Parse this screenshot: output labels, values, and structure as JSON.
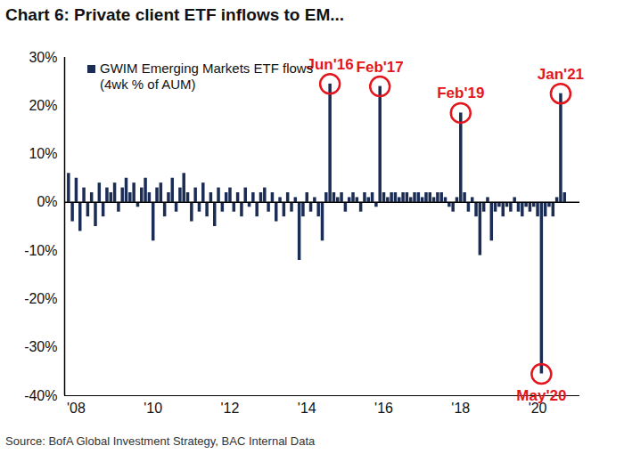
{
  "chart_data": {
    "type": "bar",
    "title": "Chart 6: Private client ETF inflows to EM...",
    "source": "Source: BofA Global Investment Strategy, BAC Internal Data",
    "x": [
      2007.8,
      2007.9,
      2008.0,
      2008.1,
      2008.2,
      2008.3,
      2008.4,
      2008.5,
      2008.6,
      2008.7,
      2008.8,
      2008.9,
      2009.0,
      2009.1,
      2009.2,
      2009.3,
      2009.4,
      2009.5,
      2009.6,
      2009.7,
      2009.8,
      2009.9,
      2010.0,
      2010.1,
      2010.2,
      2010.3,
      2010.4,
      2010.5,
      2010.6,
      2010.7,
      2010.8,
      2010.9,
      2011.0,
      2011.1,
      2011.2,
      2011.3,
      2011.4,
      2011.5,
      2011.6,
      2011.7,
      2011.8,
      2011.9,
      2012.0,
      2012.1,
      2012.2,
      2012.3,
      2012.4,
      2012.5,
      2012.6,
      2012.7,
      2012.8,
      2012.9,
      2013.0,
      2013.1,
      2013.2,
      2013.3,
      2013.4,
      2013.5,
      2013.6,
      2013.7,
      2013.8,
      2013.9,
      2014.0,
      2014.1,
      2014.2,
      2014.3,
      2014.4,
      2014.5,
      2014.6,
      2014.7,
      2014.8,
      2014.9,
      2015.0,
      2015.1,
      2015.2,
      2015.3,
      2015.4,
      2015.5,
      2015.6,
      2015.7,
      2015.8,
      2015.9,
      2016.0,
      2016.1,
      2016.2,
      2016.3,
      2016.4,
      2016.5,
      2016.6,
      2016.7,
      2016.8,
      2016.9,
      2017.0,
      2017.1,
      2017.2,
      2017.3,
      2017.4,
      2017.5,
      2017.6,
      2017.7,
      2017.8,
      2017.9,
      2018.0,
      2018.1,
      2018.2,
      2018.3,
      2018.4,
      2018.5,
      2018.6,
      2018.7,
      2018.8,
      2018.9,
      2019.0,
      2019.1,
      2019.2,
      2019.3,
      2019.4,
      2019.5,
      2019.6,
      2019.7,
      2019.8,
      2019.9,
      2020.0,
      2020.1,
      2020.2,
      2020.3,
      2020.4,
      2020.5,
      2020.6,
      2020.7
    ],
    "series": [
      {
        "name": "GWIM Emerging Markets ETF flows (4wk % of AUM)",
        "color": "#1c2d55",
        "values": [
          6,
          -4,
          5,
          -6,
          3,
          -3,
          2,
          -5,
          4,
          -3,
          3,
          2,
          4,
          -2,
          3,
          5,
          2,
          4,
          -1,
          3,
          5,
          2,
          -8,
          3,
          4,
          -3,
          2,
          5,
          -2,
          3,
          6,
          2,
          -4,
          3,
          -2,
          4,
          -3,
          2,
          -5,
          3,
          -2,
          2,
          3,
          -2,
          2,
          -3,
          3,
          -1,
          2,
          -3,
          2,
          3,
          -2,
          2,
          -4,
          1,
          -3,
          2,
          -2,
          1,
          -12,
          -3,
          2,
          -2,
          1,
          -3,
          -8,
          2,
          24.5,
          2,
          1,
          2,
          -2,
          1,
          2,
          1,
          -2,
          2,
          1,
          2,
          -1,
          24,
          2,
          1,
          2,
          2,
          1,
          2,
          2,
          1,
          2,
          2,
          1,
          2,
          2,
          1,
          2,
          2,
          1,
          -1,
          -2,
          1,
          18.5,
          2,
          -2,
          1,
          -3,
          -11,
          -2,
          1,
          -8,
          -2,
          -1,
          -3,
          -1,
          -2,
          1,
          -2,
          -3,
          -1,
          -2,
          -1,
          -3,
          -35.5,
          -3,
          -1,
          -3,
          1,
          22.5,
          2
        ]
      }
    ],
    "legend": "top-left",
    "xlim": [
      2007.7,
      2021.1
    ],
    "xticks": [
      {
        "value": 2008,
        "label": "'08"
      },
      {
        "value": 2010,
        "label": "'10"
      },
      {
        "value": 2012,
        "label": "'12"
      },
      {
        "value": 2014,
        "label": "'14"
      },
      {
        "value": 2016,
        "label": "'16"
      },
      {
        "value": 2018,
        "label": "'18"
      },
      {
        "value": 2020,
        "label": "'20"
      }
    ],
    "ylim": [
      -40,
      30
    ],
    "yticks": [
      {
        "value": -40,
        "label": "-40%"
      },
      {
        "value": -30,
        "label": "-30%"
      },
      {
        "value": -20,
        "label": "-20%"
      },
      {
        "value": -10,
        "label": "-10%"
      },
      {
        "value": 0,
        "label": "0%"
      },
      {
        "value": 10,
        "label": "10%"
      },
      {
        "value": 20,
        "label": "20%"
      },
      {
        "value": 30,
        "label": "30%"
      }
    ],
    "annotations": [
      {
        "text": "Jun'16",
        "x": 2014.6,
        "y": 24.5,
        "color": "#e3161d"
      },
      {
        "text": "Feb'17",
        "x": 2015.9,
        "y": 24,
        "color": "#e3161d"
      },
      {
        "text": "Feb'19",
        "x": 2018.0,
        "y": 18.5,
        "color": "#e3161d"
      },
      {
        "text": "May'20",
        "x": 2020.1,
        "y": -35.5,
        "color": "#e3161d"
      },
      {
        "text": "Jan'21",
        "x": 2020.6,
        "y": 22.5,
        "color": "#e3161d"
      }
    ]
  }
}
